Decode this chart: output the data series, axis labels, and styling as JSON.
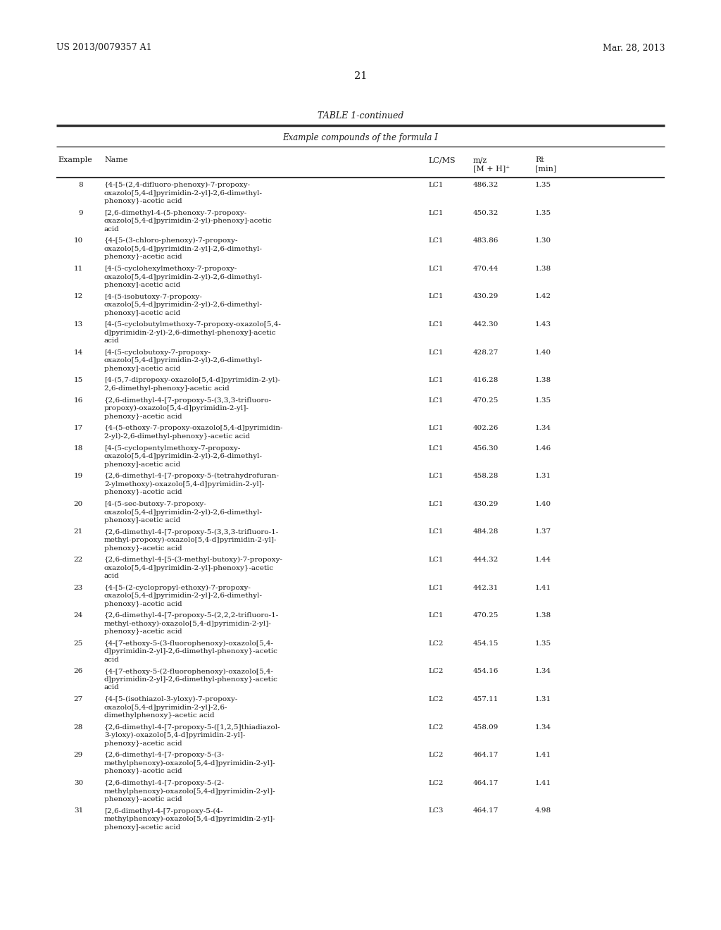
{
  "header_left": "US 2013/0079357 A1",
  "header_right": "Mar. 28, 2013",
  "page_number": "21",
  "table_title": "TABLE 1-continued",
  "table_subtitle": "Example compounds of the formula I",
  "rows": [
    [
      "8",
      "{4-[5-(2,4-difluoro-phenoxy)-7-propoxy-\noxazolo[5,4-d]pyrimidin-2-yl]-2,6-dimethyl-\nphenoxy}-acetic acid",
      "LC1",
      "486.32",
      "1.35"
    ],
    [
      "9",
      "[2,6-dimethyl-4-(5-phenoxy-7-propoxy-\noxazolo[5,4-d]pyrimidin-2-yl)-phenoxy]-acetic\nacid",
      "LC1",
      "450.32",
      "1.35"
    ],
    [
      "10",
      "{4-[5-(3-chloro-phenoxy)-7-propoxy-\noxazolo[5,4-d]pyrimidin-2-yl]-2,6-dimethyl-\nphenoxy}-acetic acid",
      "LC1",
      "483.86",
      "1.30"
    ],
    [
      "11",
      "[4-(5-cyclohexylmethoxy-7-propoxy-\noxazolo[5,4-d]pyrimidin-2-yl)-2,6-dimethyl-\nphenoxy]-acetic acid",
      "LC1",
      "470.44",
      "1.38"
    ],
    [
      "12",
      "[4-(5-isobutoxy-7-propoxy-\noxazolo[5,4-d]pyrimidin-2-yl)-2,6-dimethyl-\nphenoxy]-acetic acid",
      "LC1",
      "430.29",
      "1.42"
    ],
    [
      "13",
      "[4-(5-cyclobutylmethoxy-7-propoxy-oxazolo[5,4-\nd]pyrimidin-2-yl)-2,6-dimethyl-phenoxy]-acetic\nacid",
      "LC1",
      "442.30",
      "1.43"
    ],
    [
      "14",
      "[4-(5-cyclobutoxy-7-propoxy-\noxazolo[5,4-d]pyrimidin-2-yl)-2,6-dimethyl-\nphenoxy]-acetic acid",
      "LC1",
      "428.27",
      "1.40"
    ],
    [
      "15",
      "[4-(5,7-dipropoxy-oxazolo[5,4-d]pyrimidin-2-yl)-\n2,6-dimethyl-phenoxy]-acetic acid",
      "LC1",
      "416.28",
      "1.38"
    ],
    [
      "16",
      "{2,6-dimethyl-4-[7-propoxy-5-(3,3,3-trifluoro-\npropoxy)-oxazolo[5,4-d]pyrimidin-2-yl]-\nphenoxy}-acetic acid",
      "LC1",
      "470.25",
      "1.35"
    ],
    [
      "17",
      "{4-(5-ethoxy-7-propoxy-oxazolo[5,4-d]pyrimidin-\n2-yl)-2,6-dimethyl-phenoxy}-acetic acid",
      "LC1",
      "402.26",
      "1.34"
    ],
    [
      "18",
      "[4-(5-cyclopentylmethoxy-7-propoxy-\noxazolo[5,4-d]pyrimidin-2-yl)-2,6-dimethyl-\nphenoxy]-acetic acid",
      "LC1",
      "456.30",
      "1.46"
    ],
    [
      "19",
      "{2,6-dimethyl-4-[7-propoxy-5-(tetrahydrofuran-\n2-ylmethoxy)-oxazolo[5,4-d]pyrimidin-2-yl]-\nphenoxy}-acetic acid",
      "LC1",
      "458.28",
      "1.31"
    ],
    [
      "20",
      "[4-(5-sec-butoxy-7-propoxy-\noxazolo[5,4-d]pyrimidin-2-yl)-2,6-dimethyl-\nphenoxy]-acetic acid",
      "LC1",
      "430.29",
      "1.40"
    ],
    [
      "21",
      "{2,6-dimethyl-4-[7-propoxy-5-(3,3,3-trifluoro-1-\nmethyl-propoxy)-oxazolo[5,4-d]pyrimidin-2-yl]-\nphenoxy}-acetic acid",
      "LC1",
      "484.28",
      "1.37"
    ],
    [
      "22",
      "{2,6-dimethyl-4-[5-(3-methyl-butoxy)-7-propoxy-\noxazolo[5,4-d]pyrimidin-2-yl]-phenoxy}-acetic\nacid",
      "LC1",
      "444.32",
      "1.44"
    ],
    [
      "23",
      "{4-[5-(2-cyclopropyl-ethoxy)-7-propoxy-\noxazolo[5,4-d]pyrimidin-2-yl]-2,6-dimethyl-\nphenoxy}-acetic acid",
      "LC1",
      "442.31",
      "1.41"
    ],
    [
      "24",
      "{2,6-dimethyl-4-[7-propoxy-5-(2,2,2-trifluoro-1-\nmethyl-ethoxy)-oxazolo[5,4-d]pyrimidin-2-yl]-\nphenoxy}-acetic acid",
      "LC1",
      "470.25",
      "1.38"
    ],
    [
      "25",
      "{4-[7-ethoxy-5-(3-fluorophenoxy)-oxazolo[5,4-\nd]pyrimidin-2-yl]-2,6-dimethyl-phenoxy}-acetic\nacid",
      "LC2",
      "454.15",
      "1.35"
    ],
    [
      "26",
      "{4-[7-ethoxy-5-(2-fluorophenoxy)-oxazolo[5,4-\nd]pyrimidin-2-yl]-2,6-dimethyl-phenoxy}-acetic\nacid",
      "LC2",
      "454.16",
      "1.34"
    ],
    [
      "27",
      "{4-[5-(isothiazol-3-yloxy)-7-propoxy-\noxazolo[5,4-d]pyrimidin-2-yl]-2,6-\ndimethylphenoxy}-acetic acid",
      "LC2",
      "457.11",
      "1.31"
    ],
    [
      "28",
      "{2,6-dimethyl-4-[7-propoxy-5-([1,2,5]thiadiazol-\n3-yloxy)-oxazolo[5,4-d]pyrimidin-2-yl]-\nphenoxy}-acetic acid",
      "LC2",
      "458.09",
      "1.34"
    ],
    [
      "29",
      "{2,6-dimethyl-4-[7-propoxy-5-(3-\nmethylphenoxy)-oxazolo[5,4-d]pyrimidin-2-yl]-\nphenoxy}-acetic acid",
      "LC2",
      "464.17",
      "1.41"
    ],
    [
      "30",
      "{2,6-dimethyl-4-[7-propoxy-5-(2-\nmethylphenoxy)-oxazolo[5,4-d]pyrimidin-2-yl]-\nphenoxy}-acetic acid",
      "LC2",
      "464.17",
      "1.41"
    ],
    [
      "31",
      "[2,6-dimethyl-4-[7-propoxy-5-(4-\nmethylphenoxy)-oxazolo[5,4-d]pyrimidin-2-yl]-\nphenoxy]-acetic acid",
      "LC3",
      "464.17",
      "4.98"
    ]
  ],
  "bg_color": "#ffffff",
  "text_color": "#1a1a1a",
  "line_color": "#333333",
  "font_size_header": 9.0,
  "font_size_page": 10.5,
  "font_size_title": 9.0,
  "font_size_subtitle": 8.5,
  "font_size_col_header": 8.0,
  "font_size_data": 7.5
}
